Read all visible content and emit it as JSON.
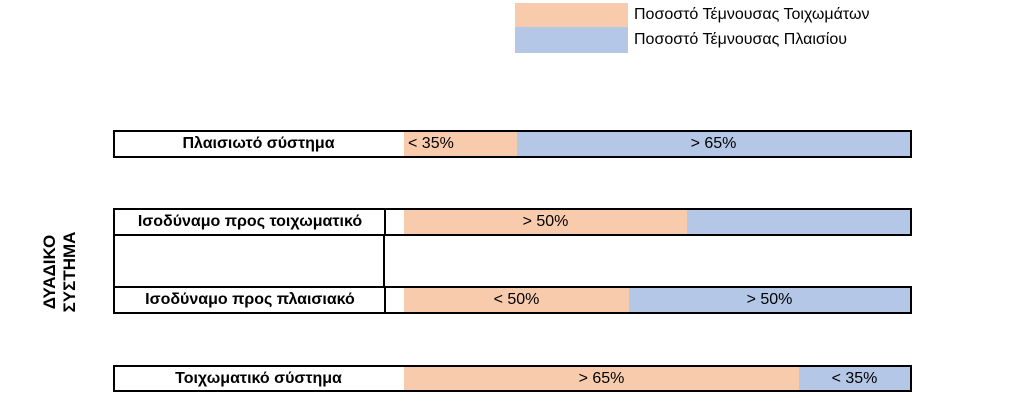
{
  "colors": {
    "wall": "#f8cbad",
    "frame": "#b4c7e7"
  },
  "legend": [
    {
      "label": "Ποσοστό Τέμνουσας Τοιχωμάτων",
      "color": "#f8cbad"
    },
    {
      "label": "Ποσοστό Τέμνουσας Πλαισίου",
      "color": "#b4c7e7"
    }
  ],
  "dual_system_label": [
    "ΔΥΑΔΙΚΟ",
    "ΣΥΣΤΗΜΑ"
  ],
  "rows": [
    {
      "label": "Πλαισιωτό σύστημα",
      "wall_text": "< 35%",
      "frame_text": "> 65%",
      "wall_fraction": 0.22
    },
    {
      "label": "Ισοδύναμο προς τοιχωματικό",
      "wall_text": "> 50%",
      "frame_text": "",
      "wall_fraction": 0.56
    },
    {
      "label": "Ισοδύναμο προς πλαισιακό",
      "wall_text": "< 50%",
      "frame_text": "> 50%",
      "wall_fraction": 0.44
    },
    {
      "label": "Τοιχωματικό σύστημα",
      "wall_text": "> 65%",
      "frame_text": "< 35%",
      "wall_fraction": 0.78
    }
  ]
}
